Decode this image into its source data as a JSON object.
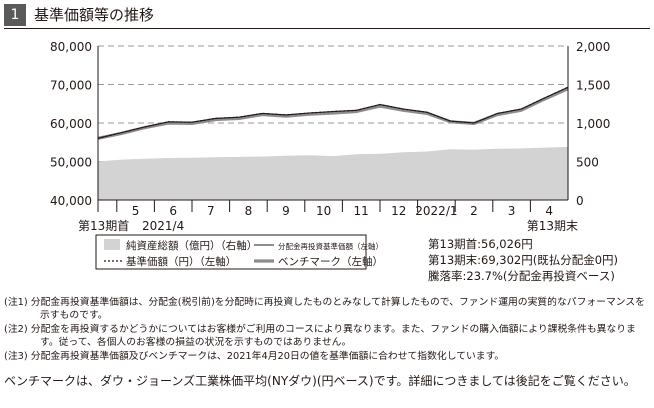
{
  "section": {
    "number": "1",
    "title": "基準価額等の推移"
  },
  "chart_data": {
    "type": "line",
    "left_axis": {
      "min": 40000,
      "max": 80000,
      "ticks": [
        "40,000",
        "50,000",
        "60,000",
        "70,000",
        "80,000"
      ]
    },
    "right_axis": {
      "min": 0,
      "max": 2000,
      "ticks": [
        "0",
        "500",
        "1,000",
        "1,500",
        "2,000"
      ]
    },
    "x_tick_labels": [
      "5",
      "6",
      "7",
      "8",
      "9",
      "10",
      "11",
      "12",
      "2022/1",
      "2",
      "3",
      "4"
    ],
    "x_start_label": "第13期首",
    "x_start_date": "2021/4",
    "x_end_label": "第13期末",
    "grid": "dashed horizontal",
    "legend": [
      "純資産総額（億円）（右軸）",
      "基準価額（円）（左軸）",
      "分配金再投資基準価額（左軸）",
      "ベンチマーク（左軸）"
    ],
    "series": [
      {
        "name": "純資産総額（億円）（右軸）",
        "axis": "right",
        "values": [
          500,
          525,
          535,
          545,
          550,
          555,
          560,
          565,
          575,
          580,
          570,
          595,
          600,
          620,
          630,
          660,
          655,
          665,
          670,
          680,
          690
        ]
      },
      {
        "name": "基準価額（円）（左軸）",
        "axis": "left",
        "values": [
          56026,
          57500,
          59000,
          60300,
          60200,
          61200,
          61500,
          62500,
          62100,
          62600,
          63000,
          63300,
          64800,
          63600,
          62800,
          60500,
          60000,
          62500,
          63600,
          66500,
          69302
        ]
      },
      {
        "name": "分配金再投資基準価額（左軸）",
        "axis": "left",
        "values": [
          56026,
          57500,
          59000,
          60300,
          60200,
          61200,
          61500,
          62500,
          62100,
          62600,
          63000,
          63300,
          64800,
          63600,
          62800,
          60500,
          60000,
          62500,
          63600,
          66500,
          69302
        ]
      },
      {
        "name": "ベンチマーク（左軸）",
        "axis": "left",
        "values": [
          56026,
          57300,
          58800,
          60000,
          59900,
          60900,
          61200,
          62200,
          61800,
          62300,
          62600,
          63000,
          64400,
          63300,
          62500,
          60300,
          59900,
          62200,
          63300,
          66200,
          68900
        ]
      }
    ]
  },
  "summary": {
    "start": "第13期首:56,026円",
    "end": "第13期末:69,302円(既払分配金0円)",
    "change": "騰落率:23.7%(分配金再投資ベース)"
  },
  "notes": [
    "(注1) 分配金再投資基準価額は、分配金(税引前)を分配時に再投資したものとみなして計算したもので、ファンド運用の実質的なパフォーマンスを示すものです。",
    "(注2) 分配金を再投資するかどうかについてはお客様がご利用のコースにより異なります。また、ファンドの購入価額により課税条件も異なります。従って、各個人のお客様の損益の状況を示すものではありません。",
    "(注3) 分配金再投資基準価額及びベンチマークは、2021年4月20日の値を基準価額に合わせて指数化しています。"
  ],
  "benchmark_text": "ベンチマークは、ダウ・ジョーンズ工業株価平均(NYダウ)(円ベース)です。詳細につきましては後記をご覧ください。"
}
